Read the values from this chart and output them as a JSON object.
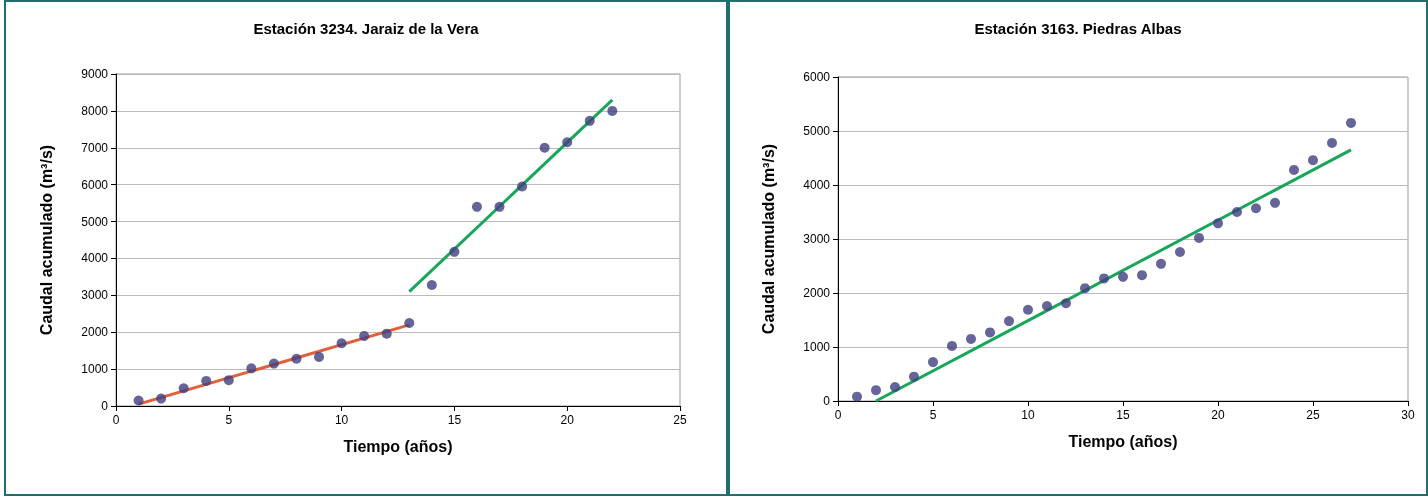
{
  "chart_data": [
    {
      "type": "scatter",
      "title": "Estación 3234. Jaraiz de la Vera",
      "xlabel": "Tiempo (años)",
      "ylabel": "Caudal acumulado (m³/s)",
      "xlim": [
        0,
        25
      ],
      "xticks": [
        0,
        5,
        10,
        15,
        20,
        25
      ],
      "ylim": [
        0,
        9000
      ],
      "yticks": [
        0,
        1000,
        2000,
        3000,
        4000,
        5000,
        6000,
        7000,
        8000,
        9000
      ],
      "grid": "y",
      "series": [
        {
          "marker": "circle",
          "color": "#3f3f7f",
          "x": [
            1,
            2,
            3,
            4,
            5,
            6,
            7,
            8,
            9,
            10,
            11,
            12,
            13,
            14,
            15,
            16,
            17,
            18,
            19,
            20,
            21,
            22
          ],
          "values": [
            150,
            200,
            480,
            680,
            700,
            1020,
            1150,
            1280,
            1330,
            1700,
            1900,
            1960,
            2250,
            3280,
            4180,
            5400,
            5400,
            5950,
            7000,
            7150,
            7730,
            8000
          ]
        },
        {
          "type": "line",
          "color": "#e0603a",
          "x": [
            1,
            13
          ],
          "values": [
            50,
            2200
          ]
        },
        {
          "type": "line",
          "color": "#1aa65a",
          "x": [
            13,
            22
          ],
          "values": [
            3100,
            8300
          ]
        }
      ]
    },
    {
      "type": "scatter",
      "title": "Estación 3163. Piedras Albas",
      "xlabel": "Tiempo (años)",
      "ylabel": "Caudal acumulado (m³/s)",
      "xlim": [
        0,
        30
      ],
      "xticks": [
        0,
        5,
        10,
        15,
        20,
        25,
        30
      ],
      "ylim": [
        0,
        6000
      ],
      "yticks": [
        0,
        1000,
        2000,
        3000,
        4000,
        5000,
        6000
      ],
      "grid": "y",
      "series": [
        {
          "marker": "circle",
          "color": "#3f3f7f",
          "x": [
            1,
            2,
            3,
            4,
            5,
            6,
            7,
            8,
            9,
            10,
            11,
            12,
            13,
            14,
            15,
            16,
            17,
            18,
            19,
            20,
            21,
            22,
            23,
            24,
            25,
            26,
            27
          ],
          "values": [
            80,
            200,
            260,
            450,
            720,
            1020,
            1150,
            1270,
            1480,
            1690,
            1760,
            1810,
            2090,
            2270,
            2300,
            2330,
            2540,
            2760,
            3020,
            3290,
            3500,
            3570,
            3670,
            4280,
            4460,
            4780,
            5150
          ]
        },
        {
          "type": "line",
          "color": "#1aa65a",
          "x": [
            2,
            27
          ],
          "values": [
            0,
            4650
          ]
        }
      ]
    }
  ]
}
